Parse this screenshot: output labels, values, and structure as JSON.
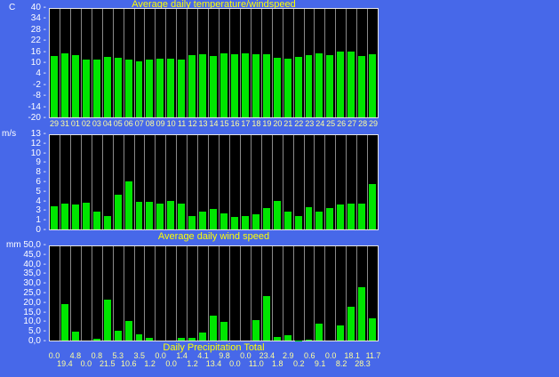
{
  "colors": {
    "background": "#4768e9",
    "plot_background": "#000000",
    "bar": "#00e600",
    "gridline": "#8a8a8a",
    "plot_frame": "#e6e6e6",
    "tick_text": "#ffffff",
    "axis_label_text": "#ffff9c",
    "title_text": "#ffff00"
  },
  "chart_data": [
    {
      "id": "temperature",
      "type": "bar",
      "title": "Average daily temperature/windspeed",
      "title_position": "above",
      "unit": "C",
      "ylim": [
        -20,
        40
      ],
      "yticks": [
        "40",
        "34",
        "28",
        "22",
        "16",
        "10",
        "4",
        "-2",
        "-8",
        "-14",
        "-20"
      ],
      "categories": [
        "29",
        "31",
        "01",
        "02",
        "03",
        "04",
        "05",
        "06",
        "07",
        "08",
        "09",
        "10",
        "11",
        "12",
        "13",
        "14",
        "15",
        "16",
        "17",
        "18",
        "19",
        "20",
        "21",
        "22",
        "23",
        "24",
        "25",
        "26",
        "27",
        "28",
        "29"
      ],
      "values": [
        13.8,
        15.5,
        14.6,
        12.2,
        11.8,
        13.6,
        13.0,
        11.8,
        11.2,
        11.8,
        12.4,
        12.4,
        11.8,
        14.4,
        15.0,
        13.9,
        15.3,
        15.0,
        15.3,
        15.0,
        15.0,
        12.8,
        12.3,
        13.3,
        14.6,
        15.3,
        14.6,
        16.3,
        16.3,
        13.9,
        15.0
      ],
      "grid": "vertical-day-lines",
      "legend": "none"
    },
    {
      "id": "windspeed",
      "type": "bar",
      "title": "Average daily wind speed",
      "title_position": "below",
      "unit": "m/s",
      "ylim": [
        0,
        13
      ],
      "yticks": [
        "13",
        "12",
        "10",
        "9",
        "8",
        "6",
        "5",
        "4",
        "3",
        "1",
        "0"
      ],
      "values": [
        3.2,
        3.5,
        3.4,
        3.7,
        2.4,
        1.9,
        4.8,
        6.6,
        3.8,
        3.8,
        3.5,
        3.9,
        3.5,
        1.8,
        2.5,
        2.8,
        2.2,
        1.7,
        1.9,
        2.1,
        3.0,
        3.9,
        2.5,
        1.8,
        3.1,
        2.5,
        3.0,
        3.4,
        3.6,
        3.6,
        6.3
      ],
      "grid": "vertical-day-lines",
      "legend": "none"
    },
    {
      "id": "precipitation",
      "type": "bar",
      "title": "Daily Precipitation Total",
      "title_position": "below",
      "unit": "mm",
      "ylim": [
        0,
        50
      ],
      "yticks": [
        "50,0",
        "45,0",
        "40,0",
        "35,0",
        "30,0",
        "25,0",
        "20,0",
        "15,0",
        "10,0",
        "5,0",
        "0,0"
      ],
      "values": [
        0.0,
        19.4,
        4.8,
        0.0,
        0.8,
        21.5,
        5.3,
        10.6,
        3.5,
        1.2,
        0.0,
        0.0,
        1.4,
        1.2,
        4.1,
        13.4,
        9.8,
        0.0,
        0.0,
        11.0,
        23.4,
        1.8,
        2.9,
        0.2,
        0.6,
        9.1,
        0.0,
        8.2,
        18.1,
        28.3,
        11.7
      ],
      "value_labels": [
        "0.0",
        "19.4",
        "4.8",
        "0.0",
        "0.8",
        "21.5",
        "5.3",
        "10.6",
        "3.5",
        "1.2",
        "0.0",
        "0.0",
        "1.4",
        "1.2",
        "4.1",
        "13.4",
        "9.8",
        "0.0",
        "0.0",
        "11.0",
        "23.4",
        "1.8",
        "2.9",
        "0.2",
        "0.6",
        "9.1",
        "0.0",
        "8.2",
        "18.1",
        "28.3",
        "11.7"
      ],
      "grid": "vertical-day-lines",
      "legend": "none"
    }
  ]
}
